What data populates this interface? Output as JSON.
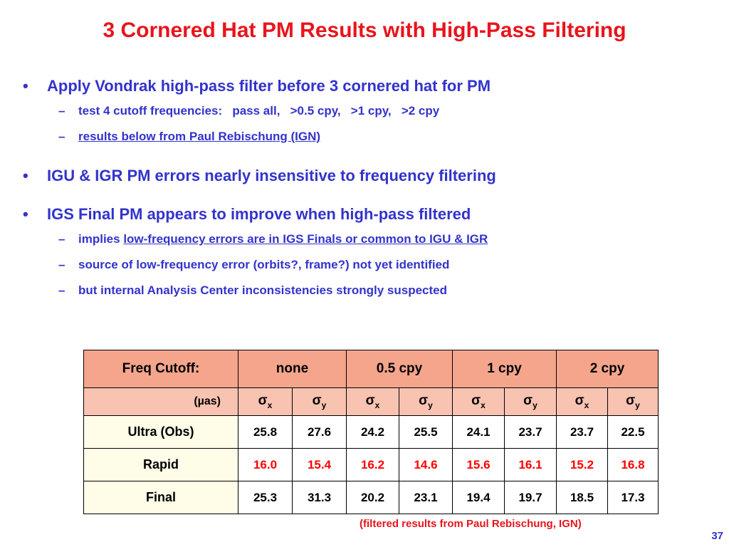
{
  "title": "3 Cornered Hat PM Results with High-Pass Filtering",
  "bullets": [
    {
      "text": "Apply Vondrak high-pass filter before 3 cornered hat for PM",
      "subs": [
        {
          "parts": [
            {
              "text": "test 4 cutoff frequencies:   pass all,   >0.5 cpy,   >1 cpy,   >2 cpy",
              "underline": false
            }
          ]
        },
        {
          "parts": [
            {
              "text": "results below from Paul Rebischung (IGN)",
              "underline": true
            }
          ]
        }
      ]
    },
    {
      "text": "IGU & IGR PM errors nearly insensitive to frequency filtering",
      "subs": []
    },
    {
      "text": "IGS Final PM appears to improve when high-pass filtered",
      "subs": [
        {
          "parts": [
            {
              "text": "implies ",
              "underline": false
            },
            {
              "text": "low-frequency errors are in IGS Finals or common to IGU & IGR",
              "underline": true
            }
          ]
        },
        {
          "parts": [
            {
              "text": "source of low-frequency error (orbits?, frame?) not yet identified",
              "underline": false
            }
          ]
        },
        {
          "parts": [
            {
              "text": "but internal Analysis Center inconsistencies strongly suspected",
              "underline": false
            }
          ]
        }
      ]
    }
  ],
  "table": {
    "header": [
      "Freq Cutoff:",
      "none",
      "0.5 cpy",
      "1 cpy",
      "2 cpy"
    ],
    "unit": "(µas)",
    "subheader": [
      {
        "symbol": "σ",
        "sub": "x"
      },
      {
        "symbol": "σ",
        "sub": "y"
      },
      {
        "symbol": "σ",
        "sub": "x"
      },
      {
        "symbol": "σ",
        "sub": "y"
      },
      {
        "symbol": "σ",
        "sub": "x"
      },
      {
        "symbol": "σ",
        "sub": "y"
      },
      {
        "symbol": "σ",
        "sub": "x"
      },
      {
        "symbol": "σ",
        "sub": "y"
      }
    ],
    "rows": [
      {
        "label": "Ultra (Obs)",
        "color": "#000000",
        "values": [
          "25.8",
          "27.6",
          "24.2",
          "25.5",
          "24.1",
          "23.7",
          "23.7",
          "22.5"
        ]
      },
      {
        "label": "Rapid",
        "color": "#ff0000",
        "values": [
          "16.0",
          "15.4",
          "16.2",
          "14.6",
          "15.6",
          "16.1",
          "15.2",
          "16.8"
        ]
      },
      {
        "label": "Final",
        "color": "#000000",
        "values": [
          "25.3",
          "31.3",
          "20.2",
          "23.1",
          "19.4",
          "19.7",
          "18.5",
          "17.3"
        ]
      }
    ]
  },
  "footnote": "(filtered results from Paul Rebischung, IGN)",
  "page_number": "37"
}
